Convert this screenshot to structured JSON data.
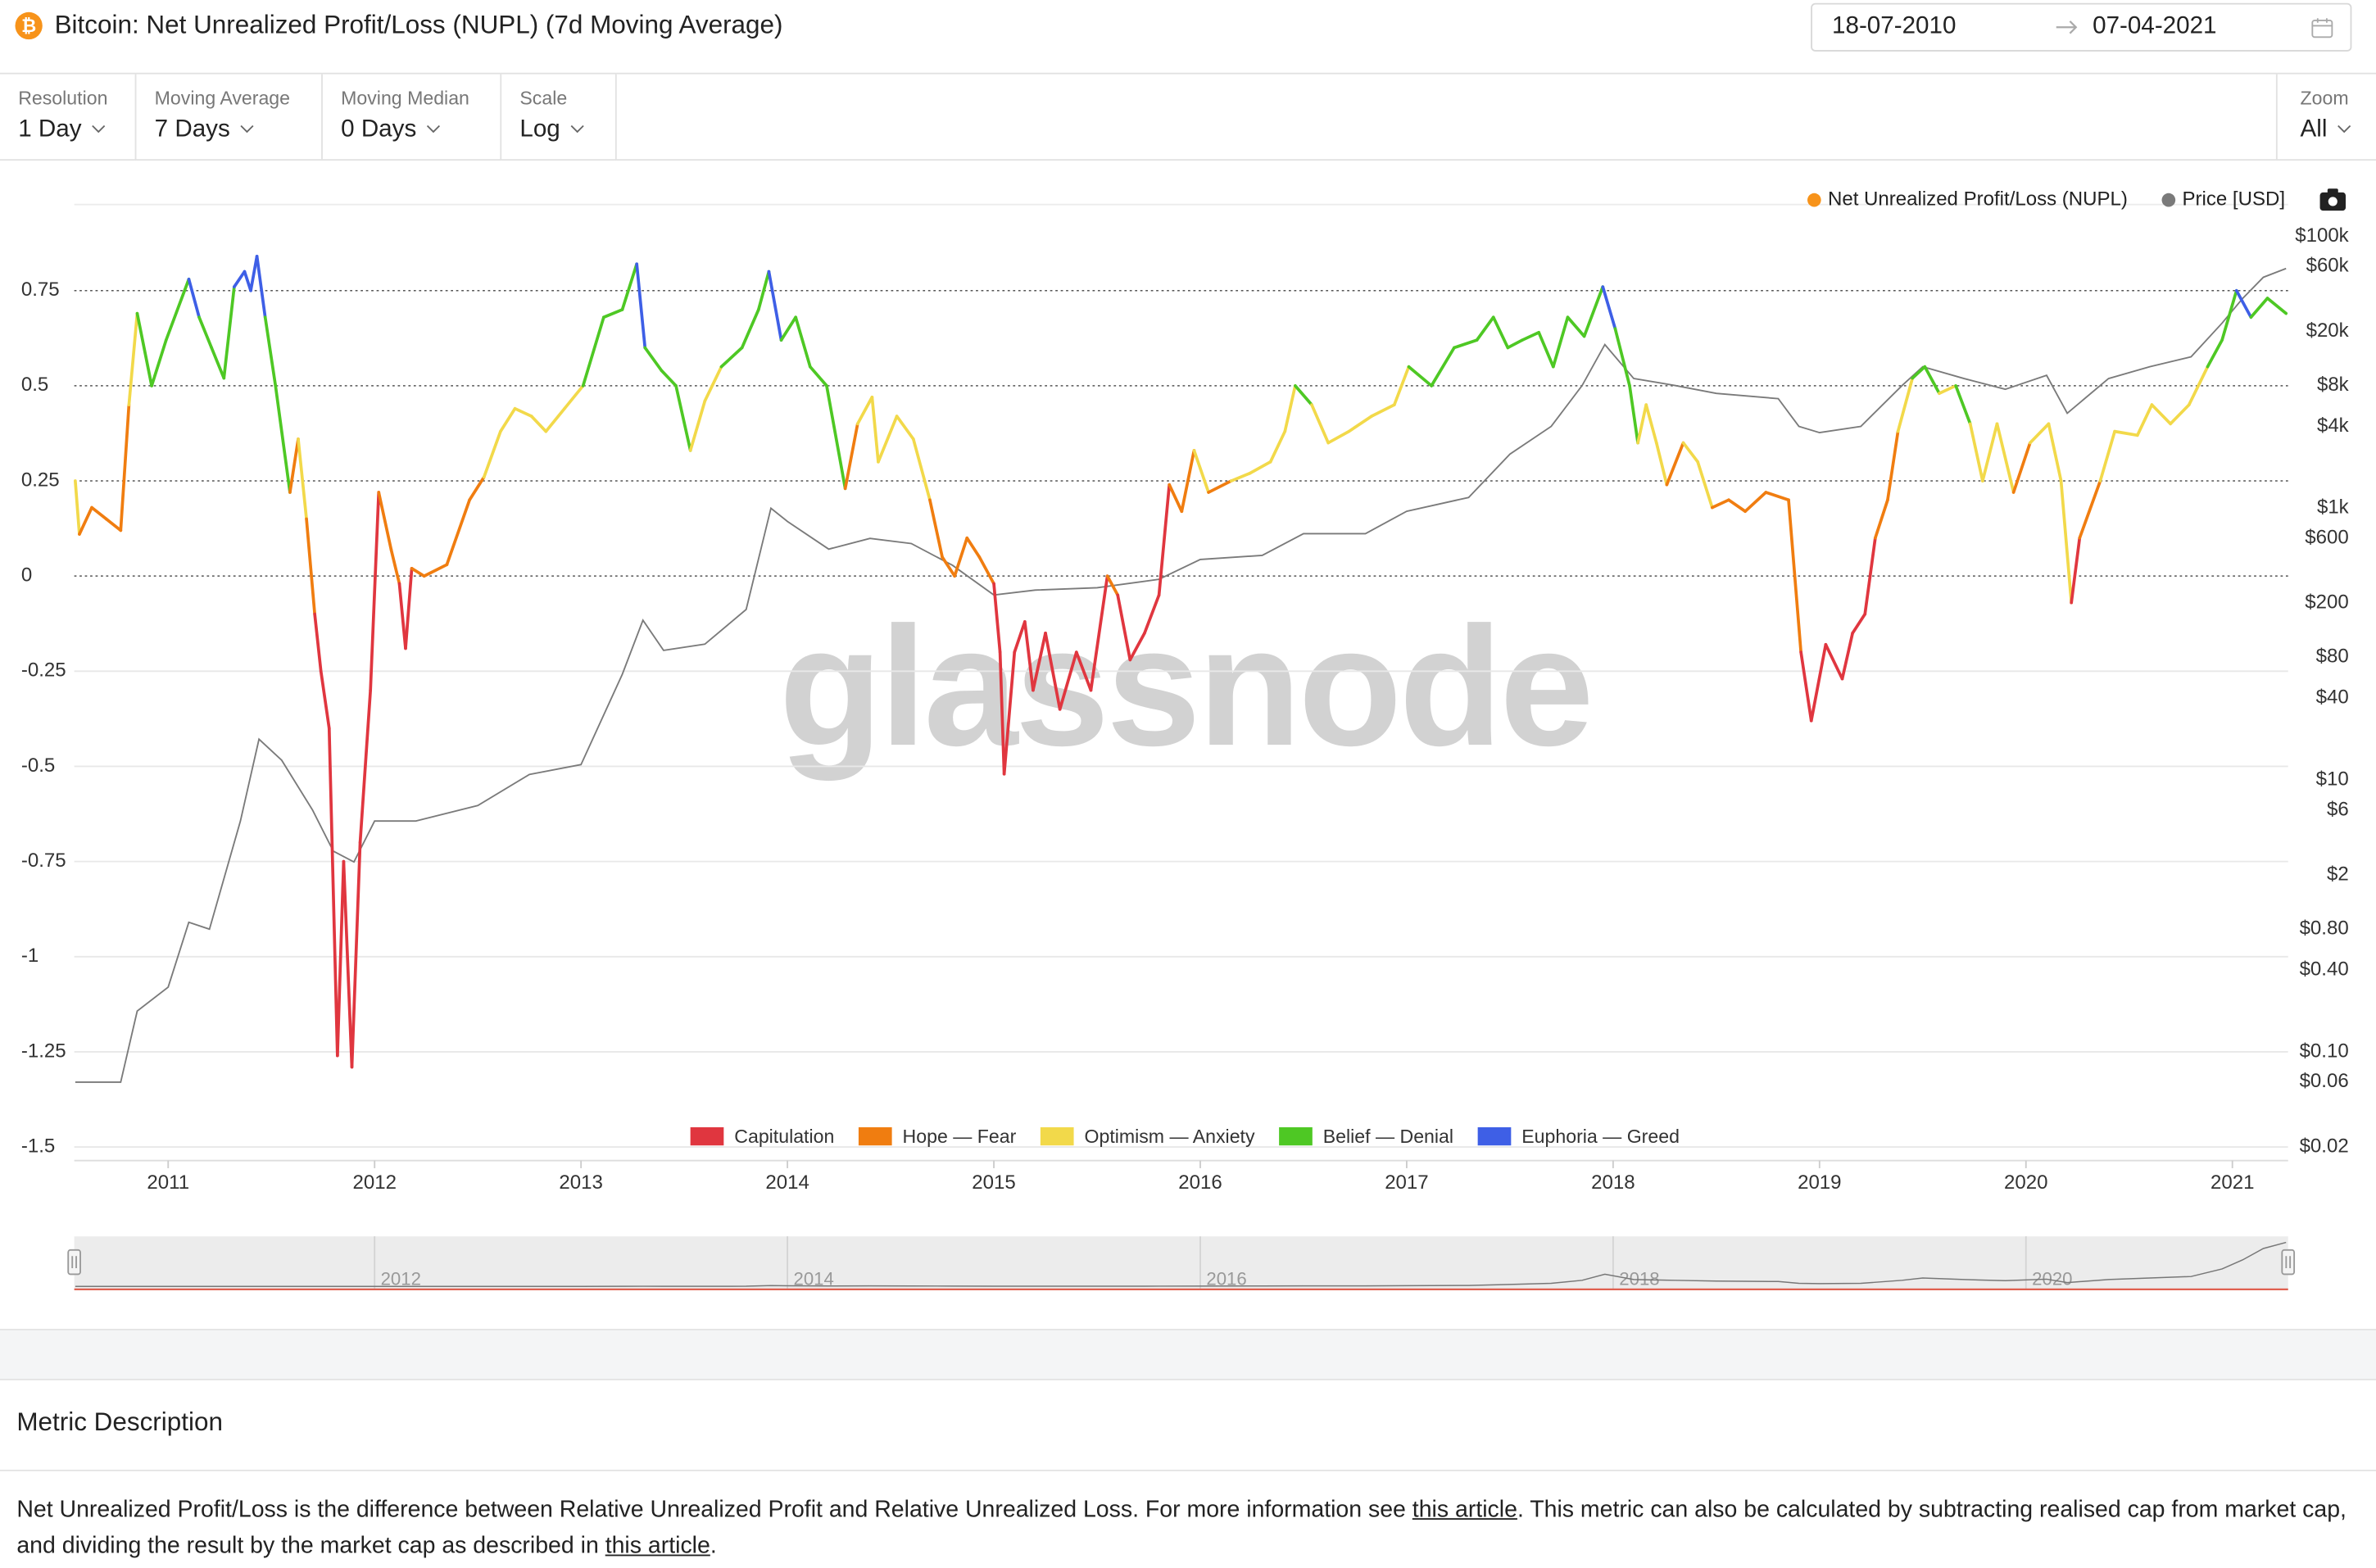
{
  "header": {
    "title": "Bitcoin: Net Unrealized Profit/Loss (NUPL) (7d Moving Average)",
    "date_from": "18-07-2010",
    "date_to": "07-04-2021"
  },
  "controls": [
    {
      "label": "Resolution",
      "value": "1 Day"
    },
    {
      "label": "Moving Average",
      "value": "7 Days"
    },
    {
      "label": "Moving Median",
      "value": "0 Days"
    },
    {
      "label": "Scale",
      "value": "Log"
    }
  ],
  "zoom": {
    "label": "Zoom",
    "value": "All"
  },
  "chart_data": {
    "type": "line",
    "watermark": "glassnode",
    "xlim": [
      2010.545,
      2021.27
    ],
    "xticks": [
      2011,
      2012,
      2013,
      2014,
      2015,
      2016,
      2017,
      2018,
      2019,
      2020,
      2021
    ],
    "ylim": [
      -1.5,
      1
    ],
    "yticks": [
      0.75,
      0.5,
      0.25,
      0,
      -0.25,
      -0.5,
      -0.75,
      -1,
      -1.25,
      -1.5
    ],
    "y2lim": [
      0.02,
      200000
    ],
    "y2scale": "log",
    "y2ticks": [
      {
        "value": 100000,
        "label": "$100k"
      },
      {
        "value": 60000,
        "label": "$60k"
      },
      {
        "value": 20000,
        "label": "$20k"
      },
      {
        "value": 8000,
        "label": "$8k"
      },
      {
        "value": 4000,
        "label": "$4k"
      },
      {
        "value": 1000,
        "label": "$1k"
      },
      {
        "value": 600,
        "label": "$600"
      },
      {
        "value": 200,
        "label": "$200"
      },
      {
        "value": 80,
        "label": "$80"
      },
      {
        "value": 40,
        "label": "$40"
      },
      {
        "value": 10,
        "label": "$10"
      },
      {
        "value": 6,
        "label": "$6"
      },
      {
        "value": 2,
        "label": "$2"
      },
      {
        "value": 0.8,
        "label": "$0.80"
      },
      {
        "value": 0.4,
        "label": "$0.40"
      },
      {
        "value": 0.1,
        "label": "$0.10"
      },
      {
        "value": 0.06,
        "label": "$0.06"
      },
      {
        "value": 0.02,
        "label": "$0.02"
      }
    ],
    "series": [
      {
        "name": "Net Unrealized Profit/Loss (NUPL)",
        "color": "#f7931a",
        "x": [
          2010.55,
          2010.57,
          2010.63,
          2010.7,
          2010.77,
          2010.81,
          2010.85,
          2010.92,
          2010.99,
          2011.1,
          2011.15,
          2011.21,
          2011.27,
          2011.32,
          2011.37,
          2011.4,
          2011.43,
          2011.47,
          2011.52,
          2011.59,
          2011.63,
          2011.67,
          2011.71,
          2011.74,
          2011.78,
          2011.82,
          2011.85,
          2011.89,
          2011.93,
          2011.98,
          2012.02,
          2012.08,
          2012.12,
          2012.15,
          2012.18,
          2012.24,
          2012.35,
          2012.46,
          2012.53,
          2012.61,
          2012.68,
          2012.76,
          2012.83,
          2012.92,
          2013.01,
          2013.11,
          2013.2,
          2013.27,
          2013.31,
          2013.39,
          2013.46,
          2013.53,
          2013.6,
          2013.68,
          2013.78,
          2013.86,
          2013.91,
          2013.97,
          2014.04,
          2014.11,
          2014.19,
          2014.28,
          2014.34,
          2014.41,
          2014.44,
          2014.53,
          2014.61,
          2014.69,
          2014.75,
          2014.81,
          2014.87,
          2014.93,
          2015.0,
          2015.03,
          2015.05,
          2015.1,
          2015.15,
          2015.19,
          2015.25,
          2015.32,
          2015.4,
          2015.47,
          2015.55,
          2015.6,
          2015.66,
          2015.73,
          2015.8,
          2015.85,
          2015.91,
          2015.97,
          2016.04,
          2016.15,
          2016.24,
          2016.34,
          2016.41,
          2016.46,
          2016.54,
          2016.62,
          2016.72,
          2016.83,
          2016.94,
          2017.01,
          2017.12,
          2017.23,
          2017.34,
          2017.42,
          2017.49,
          2017.56,
          2017.64,
          2017.71,
          2017.78,
          2017.86,
          2017.95,
          2018.01,
          2018.08,
          2018.12,
          2018.16,
          2018.21,
          2018.26,
          2018.34,
          2018.41,
          2018.48,
          2018.56,
          2018.64,
          2018.74,
          2018.85,
          2018.91,
          2018.96,
          2019.03,
          2019.11,
          2019.16,
          2019.22,
          2019.27,
          2019.33,
          2019.38,
          2019.45,
          2019.51,
          2019.58,
          2019.66,
          2019.73,
          2019.79,
          2019.86,
          2019.94,
          2020.02,
          2020.11,
          2020.17,
          2020.22,
          2020.26,
          2020.36,
          2020.43,
          2020.54,
          2020.61,
          2020.7,
          2020.79,
          2020.88,
          2020.95,
          2021.02,
          2021.09,
          2021.17,
          2021.26
        ],
        "values": [
          0.25,
          0.11,
          0.18,
          0.15,
          0.12,
          0.45,
          0.69,
          0.5,
          0.62,
          0.78,
          0.68,
          0.6,
          0.52,
          0.76,
          0.8,
          0.75,
          0.84,
          0.68,
          0.5,
          0.22,
          0.36,
          0.15,
          -0.1,
          -0.25,
          -0.4,
          -1.26,
          -0.75,
          -1.29,
          -0.7,
          -0.3,
          0.22,
          0.07,
          -0.02,
          -0.19,
          0.02,
          0.0,
          0.03,
          0.2,
          0.26,
          0.38,
          0.44,
          0.42,
          0.38,
          0.44,
          0.5,
          0.68,
          0.7,
          0.82,
          0.6,
          0.54,
          0.5,
          0.33,
          0.46,
          0.55,
          0.6,
          0.7,
          0.8,
          0.62,
          0.68,
          0.55,
          0.5,
          0.23,
          0.4,
          0.47,
          0.3,
          0.42,
          0.36,
          0.2,
          0.05,
          0.0,
          0.1,
          0.05,
          -0.02,
          -0.2,
          -0.52,
          -0.2,
          -0.12,
          -0.3,
          -0.15,
          -0.35,
          -0.2,
          -0.3,
          0.0,
          -0.05,
          -0.22,
          -0.15,
          -0.05,
          0.24,
          0.17,
          0.33,
          0.22,
          0.25,
          0.27,
          0.3,
          0.38,
          0.5,
          0.45,
          0.35,
          0.38,
          0.42,
          0.45,
          0.55,
          0.5,
          0.6,
          0.62,
          0.68,
          0.6,
          0.62,
          0.64,
          0.55,
          0.68,
          0.63,
          0.76,
          0.65,
          0.5,
          0.35,
          0.45,
          0.35,
          0.24,
          0.35,
          0.3,
          0.18,
          0.2,
          0.17,
          0.22,
          0.2,
          -0.2,
          -0.38,
          -0.18,
          -0.27,
          -0.15,
          -0.1,
          0.1,
          0.2,
          0.38,
          0.52,
          0.55,
          0.48,
          0.5,
          0.4,
          0.25,
          0.4,
          0.22,
          0.35,
          0.4,
          0.25,
          -0.07,
          0.1,
          0.25,
          0.38,
          0.37,
          0.45,
          0.4,
          0.45,
          0.55,
          0.62,
          0.75,
          0.68,
          0.73,
          0.69
        ]
      },
      {
        "name": "Price [USD]",
        "color": "#7a7a7a",
        "axis": "y2",
        "x": [
          2010.55,
          2010.77,
          2010.85,
          2011.0,
          2011.1,
          2011.2,
          2011.35,
          2011.44,
          2011.55,
          2011.7,
          2011.8,
          2011.9,
          2012.0,
          2012.2,
          2012.5,
          2012.75,
          2013.0,
          2013.2,
          2013.3,
          2013.4,
          2013.6,
          2013.8,
          2013.92,
          2014.0,
          2014.2,
          2014.4,
          2014.6,
          2014.8,
          2015.0,
          2015.2,
          2015.5,
          2015.8,
          2016.0,
          2016.3,
          2016.5,
          2016.8,
          2017.0,
          2017.3,
          2017.5,
          2017.7,
          2017.85,
          2017.96,
          2018.1,
          2018.3,
          2018.5,
          2018.8,
          2018.9,
          2019.0,
          2019.2,
          2019.4,
          2019.5,
          2019.7,
          2019.9,
          2020.1,
          2020.2,
          2020.4,
          2020.6,
          2020.8,
          2020.95,
          2021.05,
          2021.15,
          2021.26
        ],
        "values": [
          0.06,
          0.06,
          0.2,
          0.3,
          0.9,
          0.8,
          5,
          20,
          14,
          6,
          3,
          2.5,
          5,
          5,
          6.5,
          11,
          13,
          60,
          150,
          90,
          100,
          180,
          1000,
          800,
          500,
          600,
          550,
          380,
          230,
          250,
          260,
          300,
          420,
          450,
          650,
          650,
          950,
          1200,
          2500,
          4000,
          8000,
          16000,
          9000,
          8000,
          7000,
          6400,
          4000,
          3600,
          4000,
          8000,
          11000,
          9000,
          7500,
          9500,
          5000,
          9000,
          11000,
          13000,
          23000,
          35000,
          50000,
          58000
        ]
      }
    ],
    "zones": [
      {
        "name": "Capitulation",
        "color": "#e0363f"
      },
      {
        "name": "Hope — Fear",
        "color": "#f07d10"
      },
      {
        "name": "Optimism — Anxiety",
        "color": "#f2d94a"
      },
      {
        "name": "Belief — Denial",
        "color": "#4ec824"
      },
      {
        "name": "Euphoria — Greed",
        "color": "#3e5fe6"
      }
    ],
    "navigator": {
      "xticks": [
        2012,
        2014,
        2016,
        2018,
        2020
      ]
    }
  },
  "description": {
    "title": "Metric Description",
    "text": [
      "Net Unrealized Profit/Loss is the difference between Relative Unrealized Profit and Relative Unrealized Loss. For more information see ",
      "this article",
      ". This metric can also be calculated by subtracting realised cap from market cap, and dividing the result by the market cap as described in ",
      "this article",
      "."
    ]
  }
}
